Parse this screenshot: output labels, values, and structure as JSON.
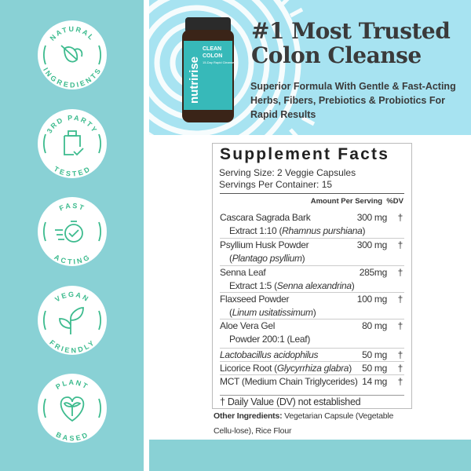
{
  "badges": [
    {
      "top": "NATURAL",
      "bottom": "INGREDIENTS",
      "icon": "leaf-icon"
    },
    {
      "top": "3RD PARTY",
      "bottom": "TESTED",
      "icon": "bottle-check-icon"
    },
    {
      "top": "FAST",
      "bottom": "ACTING",
      "icon": "stopwatch-icon"
    },
    {
      "top": "VEGAN",
      "bottom": "FRIENDLY",
      "icon": "sprout-icon"
    },
    {
      "top": "PLANT",
      "bottom": "BASED",
      "icon": "heart-sprout-icon"
    }
  ],
  "product": {
    "brand": "nutririse",
    "name1": "CLEAN",
    "name2": "COLON",
    "sub": "15-Day Rapid Cleanse"
  },
  "hero": {
    "title1": "#1 Most Trusted",
    "title2": "Colon Cleanse",
    "subtitle": "Superior Formula With Gentle & Fast-Acting Herbs, Fibers, Prebiotics & Probiotics For Rapid Results"
  },
  "facts": {
    "title": "Supplement Facts",
    "serving_size": "Serving Size: 2 Veggie Capsules",
    "servings_per": "Servings Per Container: 15",
    "col_amount": "Amount Per Serving",
    "col_dv": "%DV",
    "rows": [
      {
        "name": "Cascara Sagrada Bark",
        "line2": "Extract 1:10 (",
        "line2i": "Rhamnus  purshiana",
        "line2e": ")",
        "amount": "300 mg",
        "dv": "†"
      },
      {
        "name": "Psyllium Husk Powder",
        "line2": "(",
        "line2i": "Plantago  psyllium",
        "line2e": ")",
        "amount": "300 mg",
        "dv": "†"
      },
      {
        "name": "Senna Leaf",
        "line2": "Extract 1:5 (",
        "line2i": "Senna  alexandrina",
        "line2e": ")",
        "amount": "285mg",
        "dv": "†"
      },
      {
        "name": "Flaxseed Powder",
        "line2": "(",
        "line2i": "Linum usitatissimum",
        "line2e": ")",
        "amount": "100 mg",
        "dv": "†"
      },
      {
        "name": "Aloe Vera Gel",
        "line2": "Powder 200:1 (Leaf)",
        "line2i": "",
        "line2e": "",
        "amount": "80 mg",
        "dv": "†"
      },
      {
        "name": "",
        "namei": "Lactobacillus acidophilus",
        "amount": "50 mg",
        "dv": "†"
      },
      {
        "name": "Licorice Root (",
        "namei": "Glycyrrhiza glabra",
        "namee": ")",
        "amount": "50 mg",
        "dv": "†"
      },
      {
        "name": "MCT  (Medium Chain Triglycerides)",
        "amount": "14 mg",
        "dv": "†"
      }
    ],
    "footnote": "† Daily Value (DV) not established"
  },
  "other": {
    "label": "Other Ingredients:",
    "text": " Vegetarian Capsule (Vegetable Cellu-lose), Rice Flour"
  },
  "colors": {
    "teal": "#89d1d5",
    "sky": "#a7e3f1",
    "green": "#3dbb8e",
    "text": "#3a3a3a"
  }
}
